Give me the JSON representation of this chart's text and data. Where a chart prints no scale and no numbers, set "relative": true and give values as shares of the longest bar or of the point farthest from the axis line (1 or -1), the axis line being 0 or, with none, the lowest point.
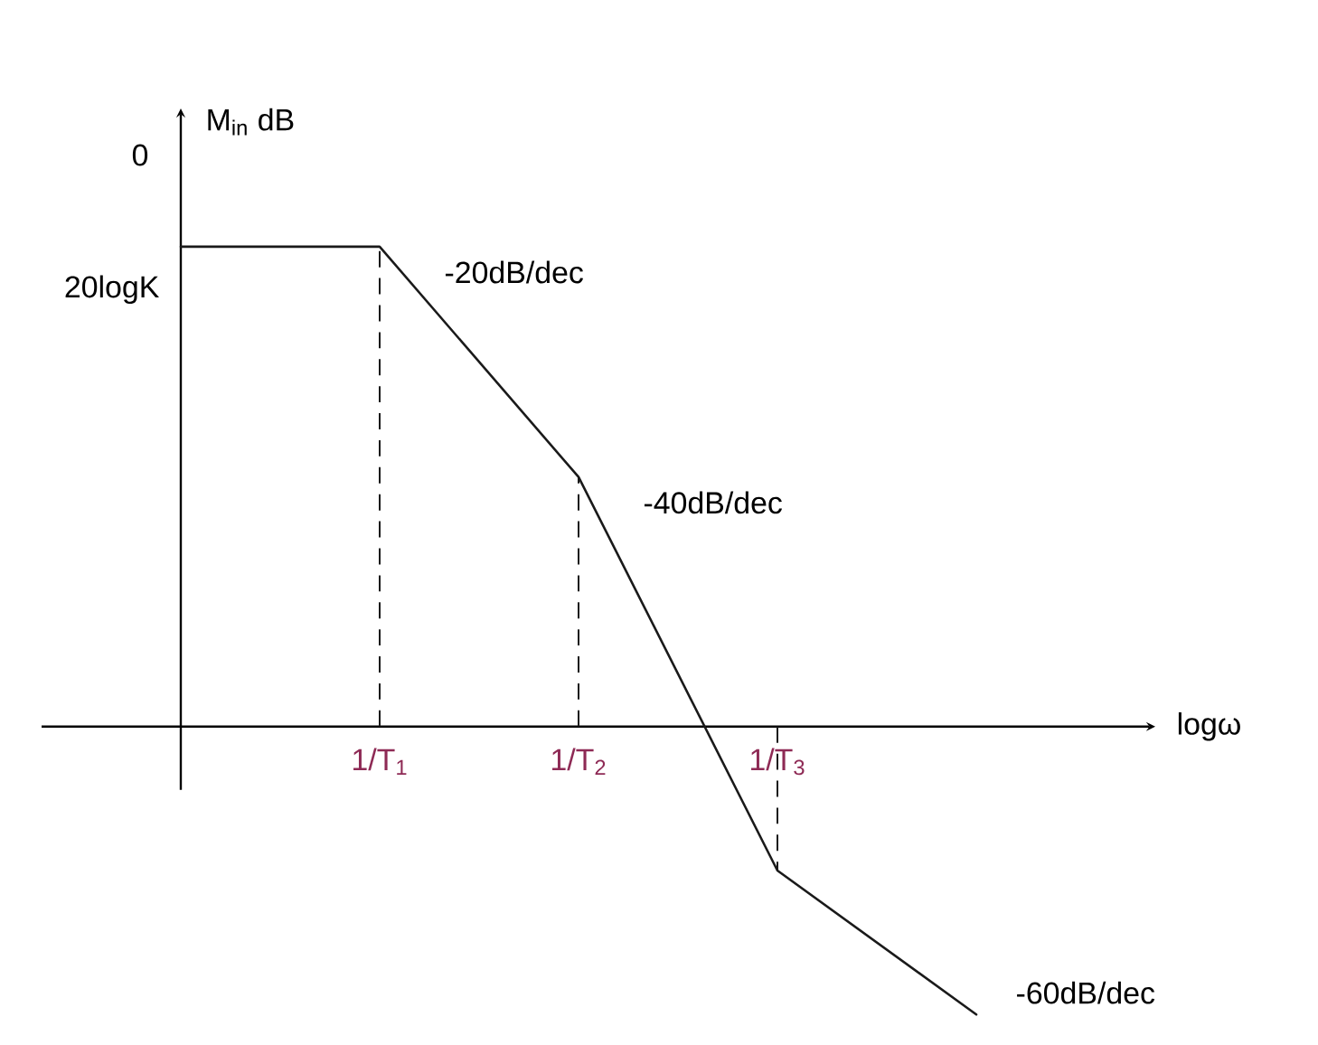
{
  "chart_data": {
    "type": "line",
    "relative": true,
    "xlabel": "logω",
    "ylabel": "M$_{in}$ dB",
    "categories": [
      null,
      "1/T$_{1}$",
      "1/T$_{2}$",
      "1/T$_{3}$",
      null
    ],
    "series": [
      {
        "color": "#1a1a1a",
        "values": [
          1,
          1,
          0.52,
          -0.3,
          -0.6
        ]
      }
    ],
    "ref_lines": [
      {
        "axis": "x",
        "value": "1/T$_{1}$",
        "line_style": "dashed",
        "color": "#1a1a1a"
      },
      {
        "axis": "x",
        "value": "1/T$_{2}$",
        "line_style": "dashed",
        "color": "#1a1a1a"
      },
      {
        "axis": "x",
        "value": "1/T$_{3}$",
        "line_style": "dashed",
        "color": "#1a1a1a"
      }
    ],
    "annotations": [
      "0",
      "20logK",
      {
        "text": "-20dB/dec",
        "x": "1/T$_{1}$",
        "y": 1
      },
      {
        "text": "-40dB/dec",
        "x": "1/T$_{2}$",
        "y": 0.52
      },
      "-60dB/dec"
    ],
    "tick_labels": "x"
  }
}
